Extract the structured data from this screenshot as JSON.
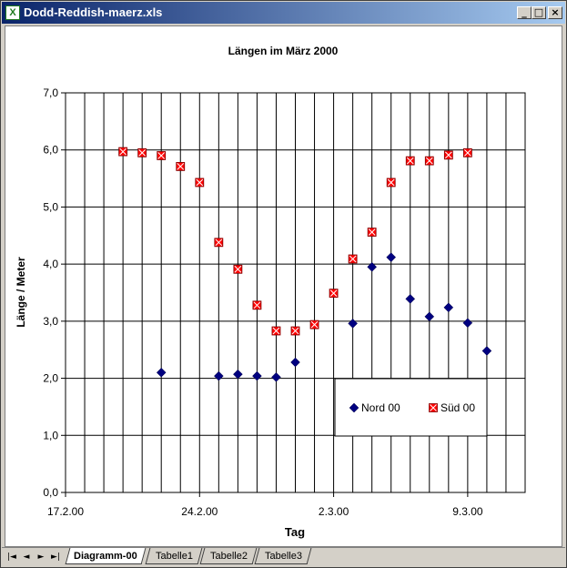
{
  "window": {
    "title": "Dodd-Reddish-maerz.xls",
    "icon": "excel-icon",
    "controls": {
      "minimize": "_",
      "maximize": "□",
      "close": "×"
    }
  },
  "tabs": {
    "nav": [
      "|◄",
      "◄",
      "►",
      "►|"
    ],
    "sheets": [
      "Diagramm-00",
      "Tabelle1",
      "Tabelle2",
      "Tabelle3"
    ],
    "active": "Diagramm-00"
  },
  "chart_data": {
    "type": "scatter",
    "title": "Längen im März 2000",
    "xlabel": "Tag",
    "ylabel": "Länge / Meter",
    "x_axis": {
      "min": "2000-02-17",
      "max": "2000-03-12",
      "major_step_days": 1,
      "tick_labels": [
        "17.2.00",
        "24.2.00",
        "2.3.00",
        "9.3.00"
      ],
      "tick_label_dates": [
        "2000-02-17",
        "2000-02-24",
        "2000-03-02",
        "2000-03-09"
      ]
    },
    "y_axis": {
      "min": 0,
      "max": 7,
      "step": 1,
      "tick_labels": [
        "0,0",
        "1,0",
        "2,0",
        "3,0",
        "4,0",
        "5,0",
        "6,0",
        "7,0"
      ]
    },
    "grid": true,
    "legend_position": "bottom-right inside plot",
    "series": [
      {
        "name": "Nord 00",
        "marker": "diamond",
        "color": "#000080",
        "points": [
          {
            "x": "2000-02-22",
            "y": 2.1
          },
          {
            "x": "2000-02-25",
            "y": 2.04
          },
          {
            "x": "2000-02-26",
            "y": 2.07
          },
          {
            "x": "2000-02-27",
            "y": 2.04
          },
          {
            "x": "2000-02-28",
            "y": 2.02
          },
          {
            "x": "2000-02-29",
            "y": 2.28
          },
          {
            "x": "2000-03-03",
            "y": 2.96
          },
          {
            "x": "2000-03-04",
            "y": 3.95
          },
          {
            "x": "2000-03-05",
            "y": 4.12
          },
          {
            "x": "2000-03-06",
            "y": 3.39
          },
          {
            "x": "2000-03-07",
            "y": 3.08
          },
          {
            "x": "2000-03-08",
            "y": 3.24
          },
          {
            "x": "2000-03-09",
            "y": 2.97
          },
          {
            "x": "2000-03-10",
            "y": 2.48
          }
        ]
      },
      {
        "name": "Süd 00",
        "marker": "x-square",
        "color": "#ff0000",
        "points": [
          {
            "x": "2000-02-20",
            "y": 5.97
          },
          {
            "x": "2000-02-21",
            "y": 5.95
          },
          {
            "x": "2000-02-22",
            "y": 5.9
          },
          {
            "x": "2000-02-23",
            "y": 5.71
          },
          {
            "x": "2000-02-24",
            "y": 5.43
          },
          {
            "x": "2000-02-25",
            "y": 4.38
          },
          {
            "x": "2000-02-26",
            "y": 3.91
          },
          {
            "x": "2000-02-27",
            "y": 3.28
          },
          {
            "x": "2000-02-28",
            "y": 2.83
          },
          {
            "x": "2000-02-29",
            "y": 2.83
          },
          {
            "x": "2000-03-01",
            "y": 2.94
          },
          {
            "x": "2000-03-02",
            "y": 3.49
          },
          {
            "x": "2000-03-03",
            "y": 4.09
          },
          {
            "x": "2000-03-04",
            "y": 4.56
          },
          {
            "x": "2000-03-05",
            "y": 5.43
          },
          {
            "x": "2000-03-06",
            "y": 5.81
          },
          {
            "x": "2000-03-07",
            "y": 5.81
          },
          {
            "x": "2000-03-08",
            "y": 5.91
          },
          {
            "x": "2000-03-09",
            "y": 5.95
          }
        ]
      }
    ]
  }
}
